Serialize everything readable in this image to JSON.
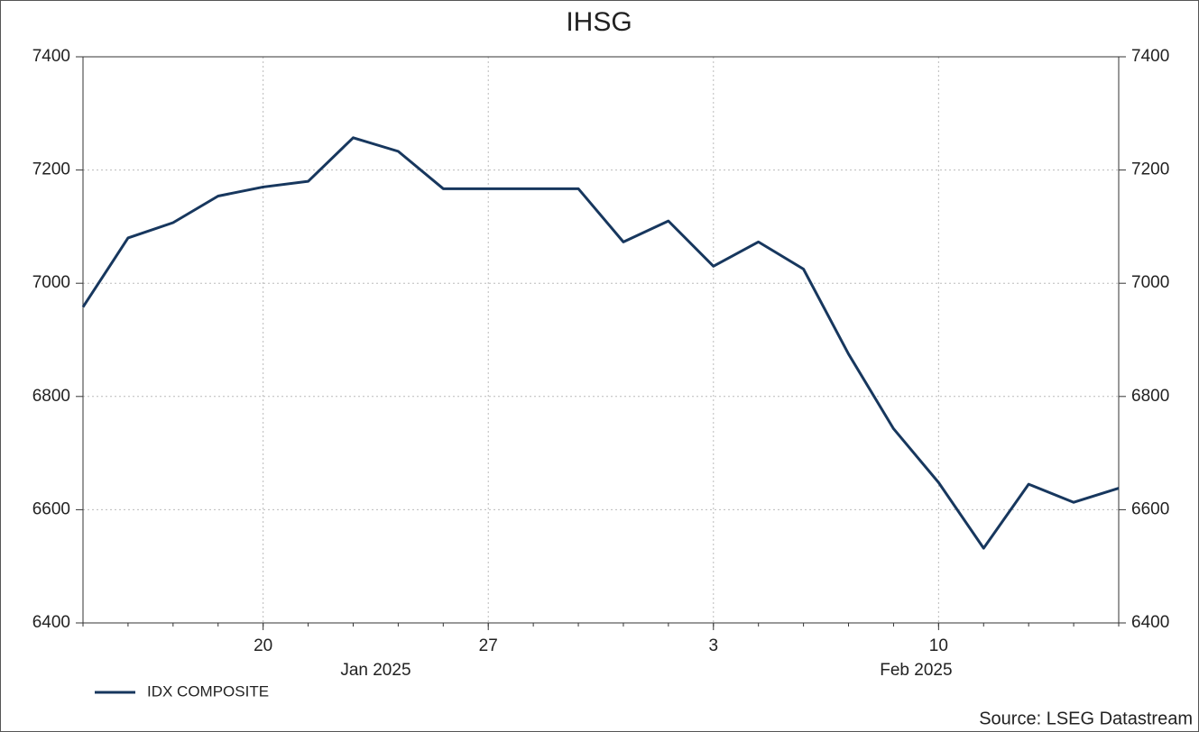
{
  "chart_data": {
    "type": "line",
    "title": "IHSG",
    "categories": [
      "2025-01-14",
      "2025-01-15",
      "2025-01-16",
      "2025-01-17",
      "2025-01-20",
      "2025-01-21",
      "2025-01-22",
      "2025-01-23",
      "2025-01-24",
      "2025-01-27",
      "2025-01-28",
      "2025-01-29",
      "2025-01-30",
      "2025-01-31",
      "2025-02-03",
      "2025-02-04",
      "2025-02-05",
      "2025-02-06",
      "2025-02-07",
      "2025-02-10",
      "2025-02-11",
      "2025-02-12",
      "2025-02-13",
      "2025-02-14"
    ],
    "series": [
      {
        "name": "IDX COMPOSITE",
        "color": "#17375e",
        "values": [
          6958,
          7080,
          7107,
          7154,
          7170,
          7180,
          7257,
          7233,
          7167,
          7167,
          7167,
          7167,
          7073,
          7110,
          7030,
          7073,
          7025,
          6875,
          6743,
          6648,
          6532,
          6645,
          6613,
          6638
        ]
      }
    ],
    "xticks": [
      {
        "value": "2025-01-20",
        "label": "20"
      },
      {
        "value": "2025-01-27",
        "label": "27"
      },
      {
        "value": "2025-02-03",
        "label": "3"
      },
      {
        "value": "2025-02-10",
        "label": "10"
      }
    ],
    "month_labels": [
      {
        "value": "2025-01",
        "label": "Jan 2025"
      },
      {
        "value": "2025-02",
        "label": "Feb 2025"
      }
    ],
    "ylim": [
      6400,
      7400
    ],
    "yticks": [
      6400,
      6600,
      6800,
      7000,
      7200,
      7400
    ],
    "grid": true,
    "source": "Source: LSEG Datastream"
  }
}
